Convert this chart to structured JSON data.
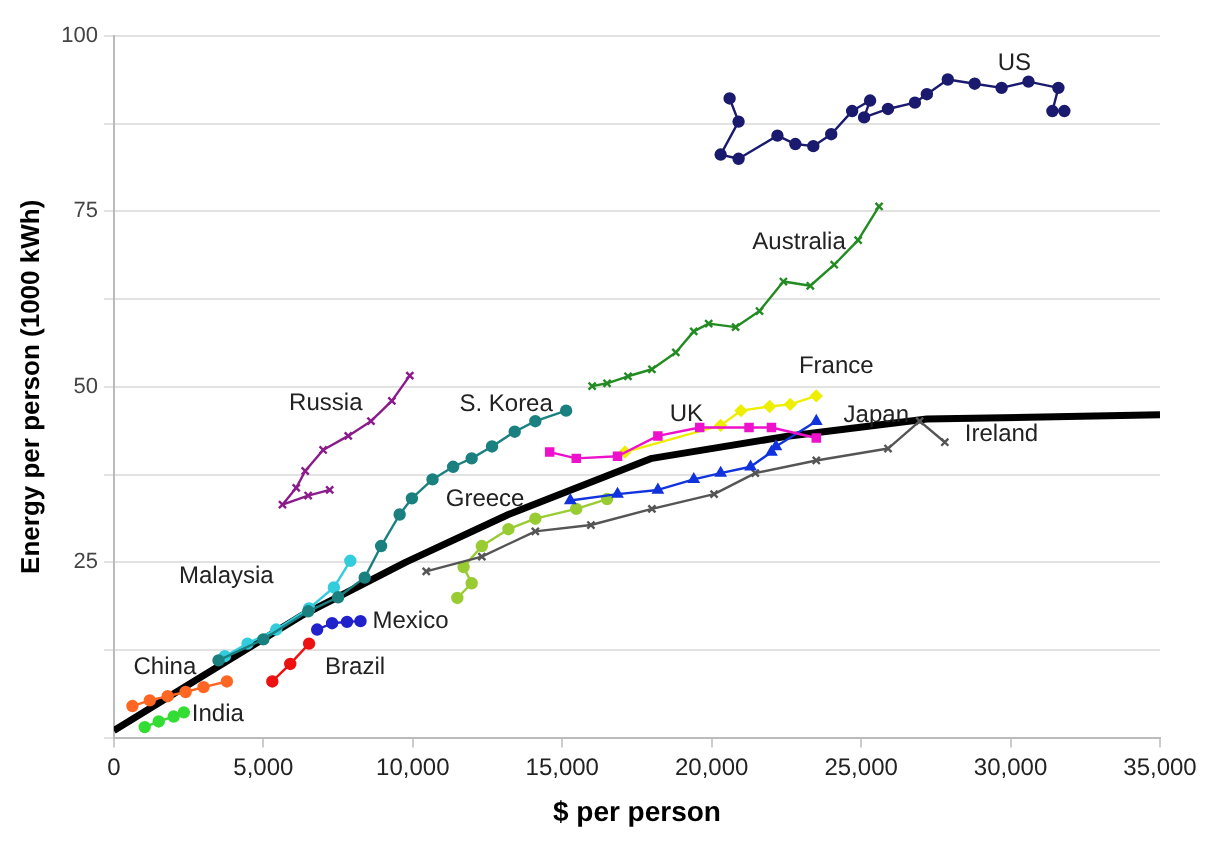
{
  "chart_data": {
    "type": "line",
    "marker": "circle",
    "xlabel": "$ per person",
    "ylabel": "Energy per person (1000 kWh)",
    "xlim": [
      0,
      35000
    ],
    "ylim": [
      0,
      100
    ],
    "xticks": [
      0,
      {
        "value": 5000,
        "label": "5,000"
      },
      {
        "value": 10000,
        "label": "10,000"
      },
      {
        "value": 15000,
        "label": "15,000"
      },
      {
        "value": 20000,
        "label": "20,000"
      },
      {
        "value": 25000,
        "label": "25,000"
      },
      {
        "value": 30000,
        "label": "30,000"
      },
      {
        "value": 35000,
        "label": "35,000"
      }
    ],
    "yticks": [
      {
        "value": 0,
        "label": null
      },
      {
        "value": 12.5,
        "label": null
      },
      25,
      {
        "value": 37.5,
        "label": null
      },
      50,
      {
        "value": 62.5,
        "label": null
      },
      75,
      {
        "value": 87.5,
        "label": null
      },
      100
    ],
    "grid": "y",
    "line_style": "solid",
    "series": [
      {
        "name": "US",
        "color": "#1a1a6e",
        "x": [
          20600,
          20900,
          20300,
          20900,
          22200,
          22800,
          23400,
          24000,
          24700,
          25300,
          25100,
          25900,
          26800,
          27200,
          27900,
          28800,
          29700,
          30600,
          31600,
          31400,
          31800
        ],
        "values": [
          91.1,
          87.8,
          83.1,
          82.5,
          85.8,
          84.6,
          84.3,
          86,
          89.3,
          90.8,
          88.4,
          89.6,
          90.5,
          91.7,
          93.8,
          93.2,
          92.6,
          93.5,
          92.6,
          89.3,
          89.3
        ]
      },
      {
        "name": "Australia",
        "color": "#228b22",
        "marker": "cross",
        "x": [
          16000,
          16500,
          17200,
          18000,
          18800,
          19400,
          19900,
          20800,
          21600,
          22400,
          23300,
          24100,
          24900,
          25600
        ],
        "values": [
          50.1,
          50.5,
          51.5,
          52.5,
          54.9,
          57.9,
          59,
          58.5,
          60.8,
          65,
          64.4,
          67.4,
          70.9,
          75.7
        ]
      },
      {
        "name": "Russia",
        "color": "#8b1a8b",
        "marker": "cross",
        "x": [
          7220,
          6500,
          5640,
          6100,
          6400,
          7000,
          7840,
          8600,
          9300,
          9900
        ],
        "values": [
          35.3,
          34.5,
          33.2,
          35.6,
          38,
          41,
          43,
          45.1,
          48,
          51.6
        ]
      },
      {
        "name": "S. Korea",
        "color": "#1a8080",
        "x": [
          3500,
          5000,
          6500,
          7500,
          8390,
          8940,
          9560,
          9970,
          10660,
          11350,
          11970,
          12650,
          13410,
          14100,
          15130
        ],
        "values": [
          11,
          14,
          18,
          20,
          22.8,
          27.3,
          31.8,
          34.1,
          36.8,
          38.6,
          39.8,
          41.5,
          43.6,
          45.1,
          46.6
        ]
      },
      {
        "name": "UK",
        "color": "#ee11cc",
        "marker": "square",
        "x": [
          14580,
          15470,
          16850,
          18200,
          19600,
          21250,
          22000,
          23500
        ],
        "values": [
          40.7,
          39.8,
          40.1,
          43,
          44.2,
          44.2,
          44.2,
          42.7
        ]
      },
      {
        "name": "France",
        "color": "#eeee00",
        "marker": "diamond",
        "x": [
          17100,
          20300,
          20980,
          21940,
          22630,
          23500
        ],
        "values": [
          40.7,
          44.5,
          46.6,
          47.2,
          47.5,
          48.7
        ]
      },
      {
        "name": "Japan",
        "color": "#1133dd",
        "marker": "triangle",
        "x": [
          15270,
          16850,
          18200,
          19400,
          20300,
          21300,
          22000,
          22150,
          23500
        ],
        "values": [
          33.8,
          34.7,
          35.3,
          36.8,
          37.7,
          38.6,
          40.7,
          41.5,
          45.1
        ]
      },
      {
        "name": "Ireland",
        "color": "#555555",
        "marker": "cross",
        "x": [
          10450,
          12310,
          14100,
          15960,
          18000,
          20080,
          21460,
          23500,
          25900,
          26960,
          27800
        ],
        "values": [
          23.7,
          25.8,
          29.4,
          30.3,
          32.6,
          34.7,
          37.7,
          39.5,
          41.2,
          45.1,
          42.1
        ]
      },
      {
        "name": "Greece",
        "color": "#99cc33",
        "x": [
          11490,
          11970,
          11700,
          12310,
          13200,
          14100,
          15470,
          16500
        ],
        "values": [
          19.9,
          22,
          24.3,
          27.3,
          29.7,
          31.2,
          32.6,
          34
        ]
      },
      {
        "name": "Malaysia",
        "color": "#33ccdd",
        "x": [
          3710,
          4470,
          5430,
          6530,
          7360,
          7910
        ],
        "values": [
          11.6,
          13.4,
          15.4,
          18.4,
          21.4,
          25.2
        ]
      },
      {
        "name": "Mexico",
        "color": "#2222cc",
        "x": [
          6800,
          7300,
          7800,
          8250
        ],
        "values": [
          15.4,
          16.3,
          16.5,
          16.6
        ]
      },
      {
        "name": "China",
        "color": "#ff6622",
        "x": [
          620,
          1200,
          1800,
          2400,
          3000,
          3780
        ],
        "values": [
          4.5,
          5.3,
          5.9,
          6.5,
          7.2,
          8
        ]
      },
      {
        "name": "Brazil",
        "color": "#ee1111",
        "x": [
          5300,
          5900,
          6530
        ],
        "values": [
          8,
          10.5,
          13.4
        ]
      },
      {
        "name": "India",
        "color": "#33dd33",
        "x": [
          1030,
          1500,
          2000,
          2340
        ],
        "values": [
          1.5,
          2.3,
          3,
          3.6
        ]
      },
      {
        "color": "#000000",
        "marker": "none",
        "x": [
          0,
          2900,
          6330,
          9770,
          13200,
          18000,
          22600,
          27200,
          35000
        ],
        "values": [
          1,
          8.6,
          17.5,
          25,
          31.8,
          39.8,
          43,
          45.4,
          46
        ]
      }
    ]
  }
}
